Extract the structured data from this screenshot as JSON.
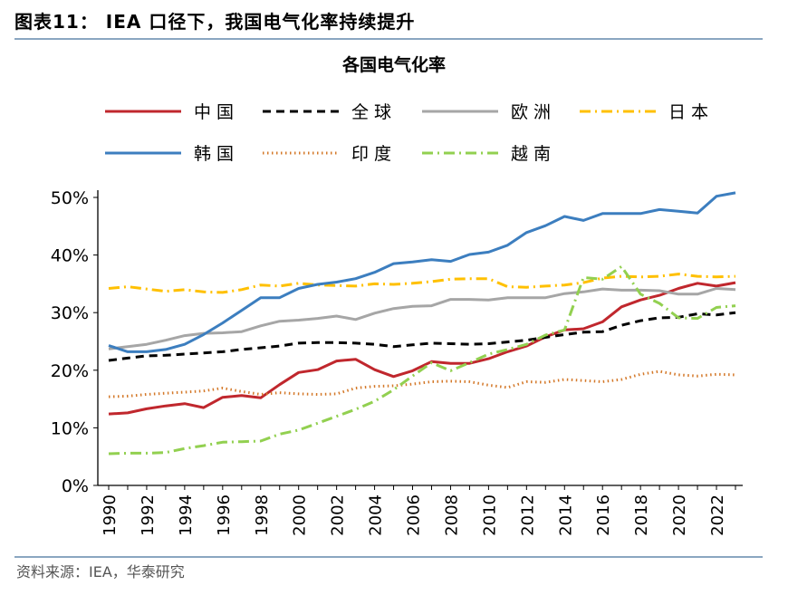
{
  "figure": {
    "title": "图表11：   IEA 口径下，我国电气化率持续提升",
    "source": "资料来源：IEA，华泰研究"
  },
  "colors": {
    "中国": "#c0272d",
    "全球": "#000000",
    "欧洲": "#a6a6a6",
    "日本": "#ffc000",
    "韩国": "#3c7ebf",
    "印度": "#d4792a",
    "越南": "#92d050",
    "rule": "#8aa6c1"
  },
  "chart_data": {
    "type": "line",
    "title": "各国电气化率",
    "xlabel": "",
    "ylabel": "",
    "ylim": [
      0,
      50
    ],
    "yticks": [
      "0%",
      "10%",
      "20%",
      "30%",
      "40%",
      "50%"
    ],
    "yticks_values": [
      0,
      10,
      20,
      30,
      40,
      50
    ],
    "xticks": [
      "1990",
      "1992",
      "1994",
      "1996",
      "1998",
      "2000",
      "2002",
      "2004",
      "2006",
      "2008",
      "2010",
      "2012",
      "2014",
      "2016",
      "2018",
      "2020",
      "2022"
    ],
    "x": [
      1990,
      1991,
      1992,
      1993,
      1994,
      1995,
      1996,
      1997,
      1998,
      1999,
      2000,
      2001,
      2002,
      2003,
      2004,
      2005,
      2006,
      2007,
      2008,
      2009,
      2010,
      2011,
      2012,
      2013,
      2014,
      2015,
      2016,
      2017,
      2018,
      2019,
      2020,
      2021,
      2022,
      2023
    ],
    "grid": false,
    "legend_position": "top",
    "series": [
      {
        "name": "中国",
        "style": "solid",
        "values": [
          12.4,
          12.6,
          13.3,
          13.8,
          14.2,
          13.5,
          15.3,
          15.6,
          15.2,
          17.5,
          19.6,
          20.1,
          21.6,
          21.9,
          20.1,
          18.9,
          19.9,
          21.5,
          21.2,
          21.2,
          22.0,
          23.2,
          24.2,
          25.8,
          27.0,
          27.2,
          28.4,
          31.0,
          32.2,
          33.0,
          34.2,
          35.1,
          34.6,
          35.2
        ]
      },
      {
        "name": "全球",
        "style": "dashed",
        "values": [
          21.7,
          22.1,
          22.5,
          22.6,
          22.8,
          23.0,
          23.2,
          23.6,
          23.9,
          24.2,
          24.7,
          24.8,
          24.8,
          24.7,
          24.5,
          24.1,
          24.4,
          24.7,
          24.6,
          24.5,
          24.6,
          24.9,
          25.2,
          25.7,
          26.2,
          26.6,
          26.7,
          27.8,
          28.6,
          29.1,
          29.2,
          29.8,
          29.6,
          30.0
        ]
      },
      {
        "name": "欧洲",
        "style": "solid",
        "values": [
          23.7,
          24.1,
          24.5,
          25.2,
          26.0,
          26.4,
          26.5,
          26.7,
          27.7,
          28.5,
          28.7,
          29.0,
          29.4,
          28.8,
          29.9,
          30.7,
          31.1,
          31.2,
          32.3,
          32.3,
          32.2,
          32.6,
          32.6,
          32.6,
          33.3,
          33.6,
          34.1,
          33.9,
          33.9,
          33.8,
          33.2,
          33.2,
          34.2,
          34.0
        ]
      },
      {
        "name": "日本",
        "style": "dashdot",
        "values": [
          34.2,
          34.5,
          34.1,
          33.7,
          34.0,
          33.6,
          33.5,
          34.0,
          34.8,
          34.6,
          35.1,
          34.8,
          34.7,
          34.6,
          35.0,
          34.9,
          35.1,
          35.4,
          35.8,
          35.9,
          35.9,
          34.5,
          34.4,
          34.6,
          34.8,
          35.2,
          36.0,
          36.3,
          36.2,
          36.3,
          36.7,
          36.3,
          36.2,
          36.3
        ]
      },
      {
        "name": "韩国",
        "style": "solid",
        "values": [
          24.3,
          23.2,
          23.2,
          23.6,
          24.5,
          26.2,
          28.2,
          30.4,
          32.6,
          32.6,
          34.2,
          34.9,
          35.3,
          35.9,
          37.0,
          38.5,
          38.8,
          39.2,
          38.9,
          40.1,
          40.5,
          41.7,
          43.9,
          45.1,
          46.7,
          46.0,
          47.2,
          47.2,
          47.2,
          47.9,
          47.6,
          47.3,
          50.2,
          50.8
        ]
      },
      {
        "name": "印度",
        "style": "dotted",
        "values": [
          15.4,
          15.5,
          15.8,
          16.0,
          16.2,
          16.4,
          16.9,
          16.3,
          15.8,
          16.1,
          15.9,
          15.8,
          15.9,
          16.9,
          17.2,
          17.3,
          17.6,
          18.0,
          18.1,
          18.0,
          17.4,
          17.0,
          18.0,
          17.9,
          18.4,
          18.2,
          18.0,
          18.4,
          19.3,
          19.8,
          19.2,
          19.0,
          19.3,
          19.2
        ]
      },
      {
        "name": "越南",
        "style": "dashdot",
        "values": [
          5.5,
          5.6,
          5.6,
          5.7,
          6.4,
          6.9,
          7.5,
          7.6,
          7.7,
          8.9,
          9.6,
          10.8,
          12.0,
          13.2,
          14.6,
          16.6,
          19.0,
          21.3,
          19.9,
          21.3,
          22.8,
          23.6,
          24.5,
          26.1,
          27.0,
          36.1,
          35.8,
          38.0,
          33.2,
          31.6,
          29.1,
          29.0,
          30.9,
          31.2
        ]
      }
    ]
  }
}
